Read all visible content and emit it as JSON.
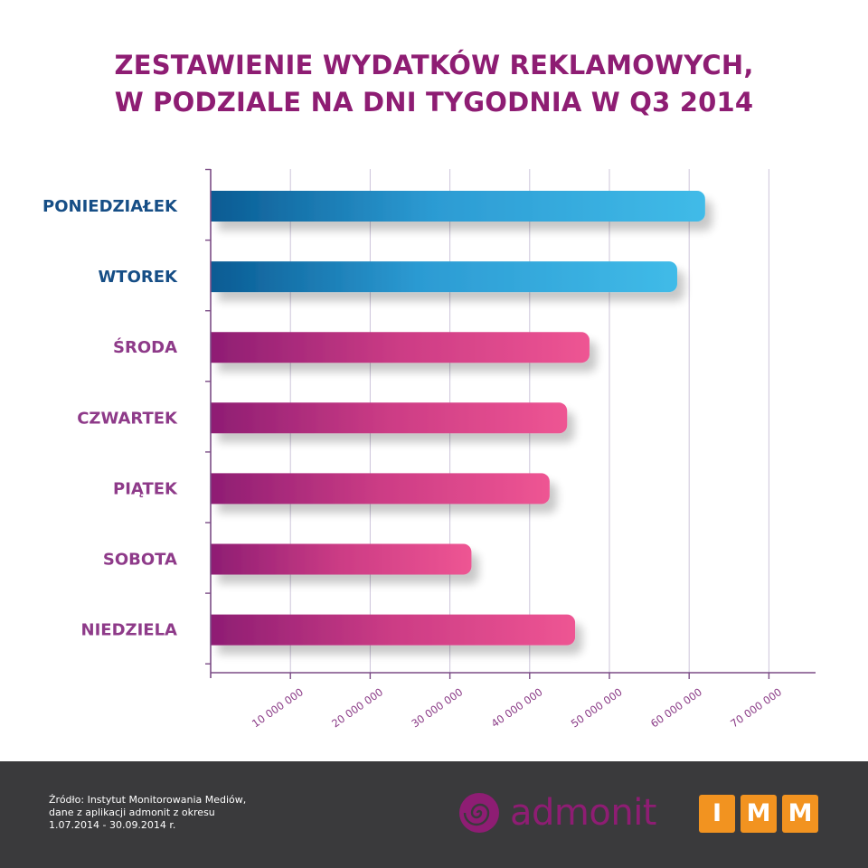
{
  "title": {
    "line1": "ZESTAWIENIE WYDATKÓW REKLAMOWYCH,",
    "line2": "W PODZIALE NA DNI TYGODNIA W Q3 2014"
  },
  "chart_data": {
    "type": "bar",
    "orientation": "horizontal",
    "title": "ZESTAWIENIE WYDATKÓW REKLAMOWYCH, W PODZIALE NA DNI TYGODNIA W Q3 2014",
    "categories": [
      "PONIEDZIAŁEK",
      "WTOREK",
      "ŚRODA",
      "CZWARTEK",
      "PIĄTEK",
      "SOBOTA",
      "NIEDZIELA"
    ],
    "values": [
      62000000,
      58500000,
      47500000,
      44700000,
      42500000,
      32700000,
      45700000
    ],
    "xlim": [
      0,
      75000000
    ],
    "x_ticks": [
      10000000,
      20000000,
      30000000,
      40000000,
      50000000,
      60000000,
      70000000
    ],
    "x_tick_labels": [
      "10 000 000",
      "20 000 000",
      "30 000 000",
      "40 000 000",
      "50 000 000",
      "60 000 000",
      "70 000 000"
    ],
    "grid": "vertical",
    "legend": "none",
    "colors": {
      "weekday_blue": [
        "#0a5b93",
        "#3bb7e6"
      ],
      "other_pink": [
        "#8e1d73",
        "#ee5593"
      ],
      "blue_label": "#164e86",
      "pink_label": "#8e3a89"
    },
    "bar_color_groups": [
      "blue",
      "blue",
      "pink",
      "pink",
      "pink",
      "pink",
      "pink"
    ]
  },
  "footer": {
    "source_lines": [
      "Źródło: Instytut Monitorowania Mediów,",
      "dane z aplikacji admonit z okresu",
      "1.07.2014 - 30.09.2014 r."
    ],
    "admonit_logo_text": "admonit",
    "imm_letters": [
      "I",
      "M",
      "M"
    ],
    "background": "#3a3a3c",
    "imm_color": "#f29320"
  }
}
